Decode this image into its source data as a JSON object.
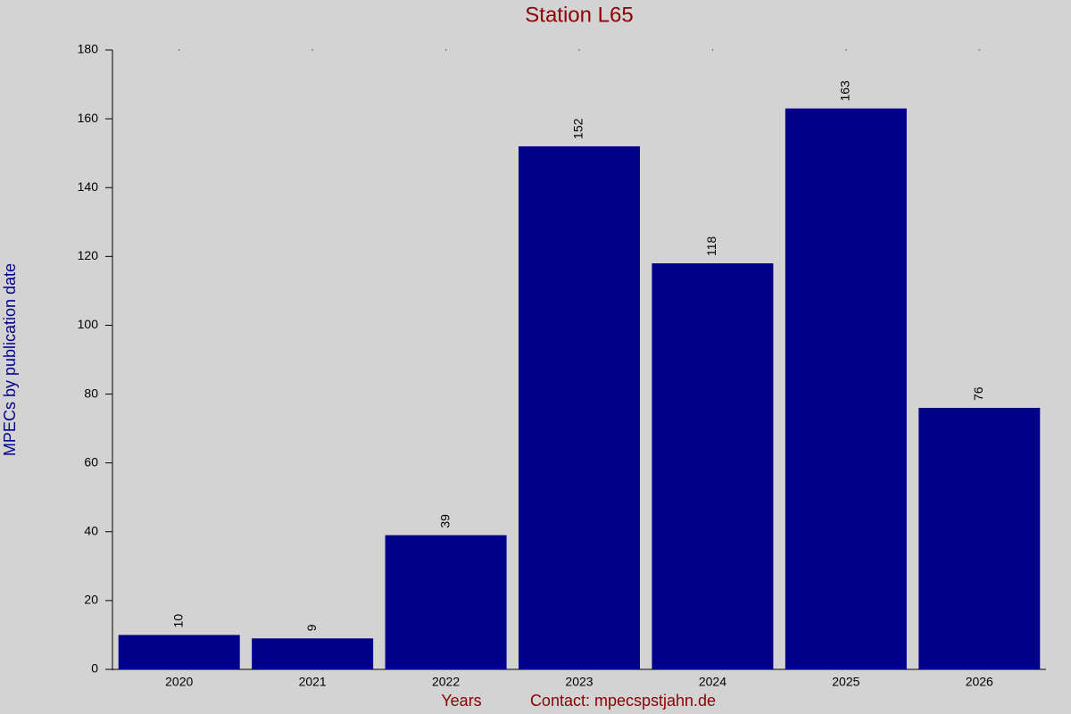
{
  "chart_data": {
    "type": "bar",
    "title": "Station L65",
    "y_label": "MPECs by publication date",
    "x_label": "Years",
    "contact": "Contact: mpecspstjahn.de",
    "categories": [
      "2020",
      "2021",
      "2022",
      "2023",
      "2024",
      "2025",
      "2026"
    ],
    "values": [
      10,
      9,
      39,
      152,
      118,
      163,
      76
    ],
    "color": "#00008b",
    "ylim": [
      0,
      180
    ],
    "yticks": [
      0,
      20,
      40,
      60,
      80,
      100,
      120,
      140,
      160,
      180
    ],
    "grid": false
  }
}
